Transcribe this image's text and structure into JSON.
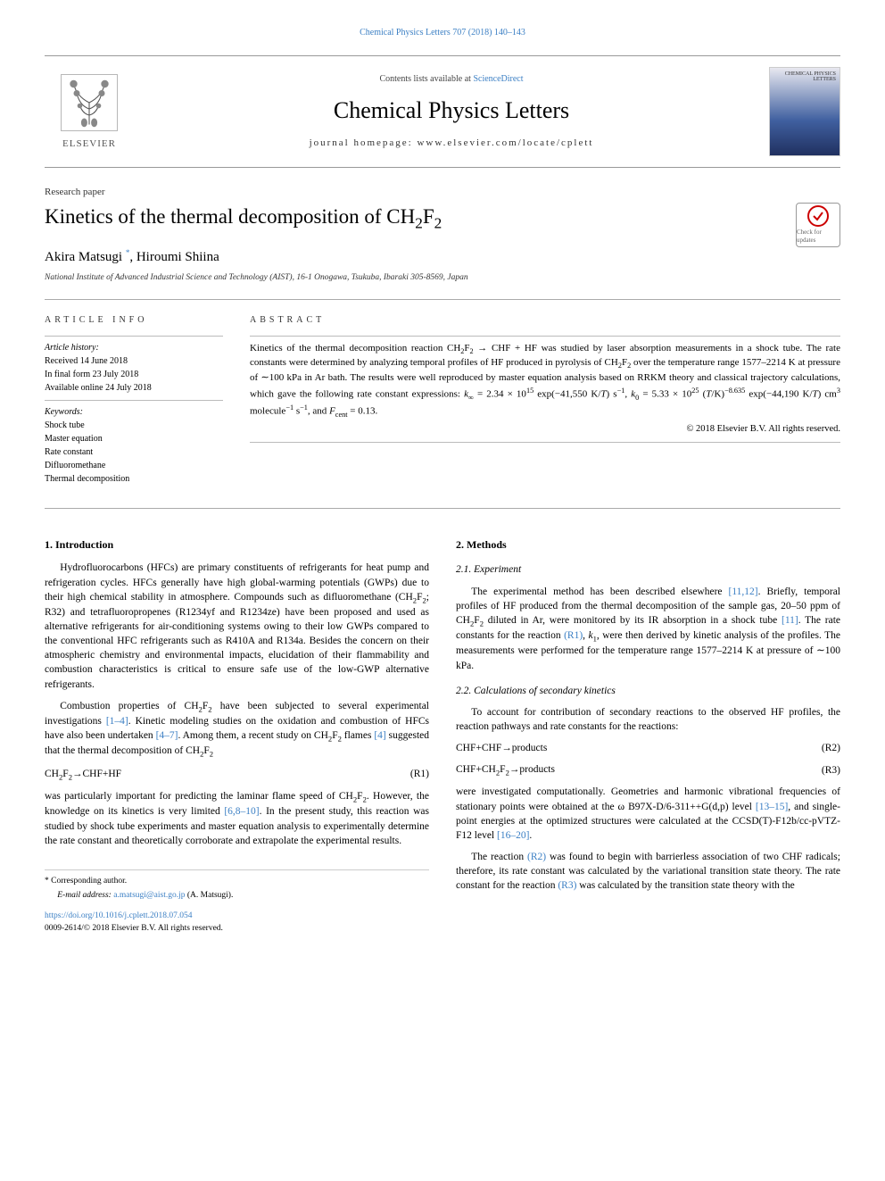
{
  "top_citation": "Chemical Physics Letters 707 (2018) 140–143",
  "header": {
    "contents_prefix": "Contents lists available at ",
    "contents_link": "ScienceDirect",
    "journal_title": "Chemical Physics Letters",
    "homepage_label": "journal homepage: www.elsevier.com/locate/cplett",
    "publisher_name": "ELSEVIER",
    "cover_label": "CHEMICAL PHYSICS LETTERS"
  },
  "paper_type": "Research paper",
  "paper_title_html": "Kinetics of the thermal decomposition of CH<sub>2</sub>F<sub>2</sub>",
  "crossmark_label": "Check for updates",
  "authors_html": "Akira Matsugi <sup class=\"corr-star\">*</sup>, Hiroumi Shiina",
  "affiliation": "National Institute of Advanced Industrial Science and Technology (AIST), 16-1 Onogawa, Tsukuba, Ibaraki 305-8569, Japan",
  "article_info": {
    "heading": "ARTICLE INFO",
    "history_label": "Article history:",
    "received": "Received 14 June 2018",
    "final_form": "In final form 23 July 2018",
    "online": "Available online 24 July 2018",
    "keywords_label": "Keywords:",
    "keywords": [
      "Shock tube",
      "Master equation",
      "Rate constant",
      "Difluoromethane",
      "Thermal decomposition"
    ]
  },
  "abstract": {
    "heading": "ABSTRACT",
    "text_html": "Kinetics of the thermal decomposition reaction CH<sub>2</sub>F<sub>2</sub> → CHF + HF was studied by laser absorption measurements in a shock tube. The rate constants were determined by analyzing temporal profiles of HF produced in pyrolysis of CH<sub>2</sub>F<sub>2</sub> over the temperature range 1577–2214 K at pressure of ∼100 kPa in Ar bath. The results were well reproduced by master equation analysis based on RRKM theory and classical trajectory calculations, which gave the following rate constant expressions: <i>k</i><sub>∞</sub> = 2.34 × 10<sup>15</sup> exp(−41,550 K/<i>T</i>) s<sup>−1</sup>, <i>k</i><sub>0</sub> = 5.33 × 10<sup>25</sup> (<i>T</i>/K)<sup>−8.635</sup> exp(−44,190 K/<i>T</i>) cm<sup>3</sup> molecule<sup>−1</sup> s<sup>−1</sup>, and <i>F</i><sub>cent</sub> = 0.13.",
    "copyright": "© 2018 Elsevier B.V. All rights reserved."
  },
  "sections": {
    "s1": {
      "heading": "1. Introduction",
      "p1_html": "Hydrofluorocarbons (HFCs) are primary constituents of refrigerants for heat pump and refrigeration cycles. HFCs generally have high global-warming potentials (GWPs) due to their high chemical stability in atmosphere. Compounds such as difluoromethane (CH<sub>2</sub>F<sub>2</sub>; R32) and tetrafluoropropenes (R1234yf and R1234ze) have been proposed and used as alternative refrigerants for air-conditioning systems owing to their low GWPs compared to the conventional HFC refrigerants such as R410A and R134a. Besides the concern on their atmospheric chemistry and environmental impacts, elucidation of their flammability and combustion characteristics is critical to ensure safe use of the low-GWP alternative refrigerants.",
      "p2_html": "Combustion properties of CH<sub>2</sub>F<sub>2</sub> have been subjected to several experimental investigations <span class=\"ref-link\">[1–4]</span>. Kinetic modeling studies on the oxidation and combustion of HFCs have also been undertaken <span class=\"ref-link\">[4–7]</span>. Among them, a recent study on CH<sub>2</sub>F<sub>2</sub> flames <span class=\"ref-link\">[4]</span> suggested that the thermal decomposition of CH<sub>2</sub>F<sub>2</sub>",
      "eq1_html": "CH<sub>2</sub>F<sub>2</sub>→CHF+HF",
      "eq1_num": "(R1)",
      "p3_html": "was particularly important for predicting the laminar flame speed of CH<sub>2</sub>F<sub>2</sub>. However, the knowledge on its kinetics is very limited <span class=\"ref-link\">[6,8–10]</span>. In the present study, this reaction was studied by shock tube experiments and master equation analysis to experimentally determine the rate constant and theoretically corroborate and extrapolate the experimental results."
    },
    "s2": {
      "heading": "2. Methods",
      "s21_heading": "2.1. Experiment",
      "p21_html": "The experimental method has been described elsewhere <span class=\"ref-link\">[11,12]</span>. Briefly, temporal profiles of HF produced from the thermal decomposition of the sample gas, 20–50 ppm of CH<sub>2</sub>F<sub>2</sub> diluted in Ar, were monitored by its IR absorption in a shock tube <span class=\"ref-link\">[11]</span>. The rate constants for the reaction <span class=\"eq-link\">(R1)</span>, <i>k</i><sub>1</sub>, were then derived by kinetic analysis of the profiles. The measurements were performed for the temperature range 1577–2214 K at pressure of ∼100 kPa.",
      "s22_heading": "2.2. Calculations of secondary kinetics",
      "p22a_html": "To account for contribution of secondary reactions to the observed HF profiles, the reaction pathways and rate constants for the reactions:",
      "eq2_html": "CHF+CHF→products",
      "eq2_num": "(R2)",
      "eq3_html": "CHF+CH<sub>2</sub>F<sub>2</sub>→products",
      "eq3_num": "(R3)",
      "p22b_html": "were investigated computationally. Geometries and harmonic vibrational frequencies of stationary points were obtained at the ω B97X-D/6-311++G(d,p) level <span class=\"ref-link\">[13–15]</span>, and single-point energies at the optimized structures were calculated at the CCSD(T)-F12b/cc-pVTZ-F12 level <span class=\"ref-link\">[16–20]</span>.",
      "p22c_html": "The reaction <span class=\"eq-link\">(R2)</span> was found to begin with barrierless association of two CHF radicals; therefore, its rate constant was calculated by the variational transition state theory. The rate constant for the reaction <span class=\"eq-link\">(R3)</span> was calculated by the transition state theory with the"
    }
  },
  "footer": {
    "corr": "* Corresponding author.",
    "email_label": "E-mail address:",
    "email": "a.matsugi@aist.go.jp",
    "email_author": "(A. Matsugi).",
    "doi": "https://doi.org/10.1016/j.cplett.2018.07.054",
    "issn_copy": "0009-2614/© 2018 Elsevier B.V. All rights reserved."
  },
  "colors": {
    "link": "#3b7fc4",
    "rule": "#aaaaaa",
    "text": "#000000"
  }
}
